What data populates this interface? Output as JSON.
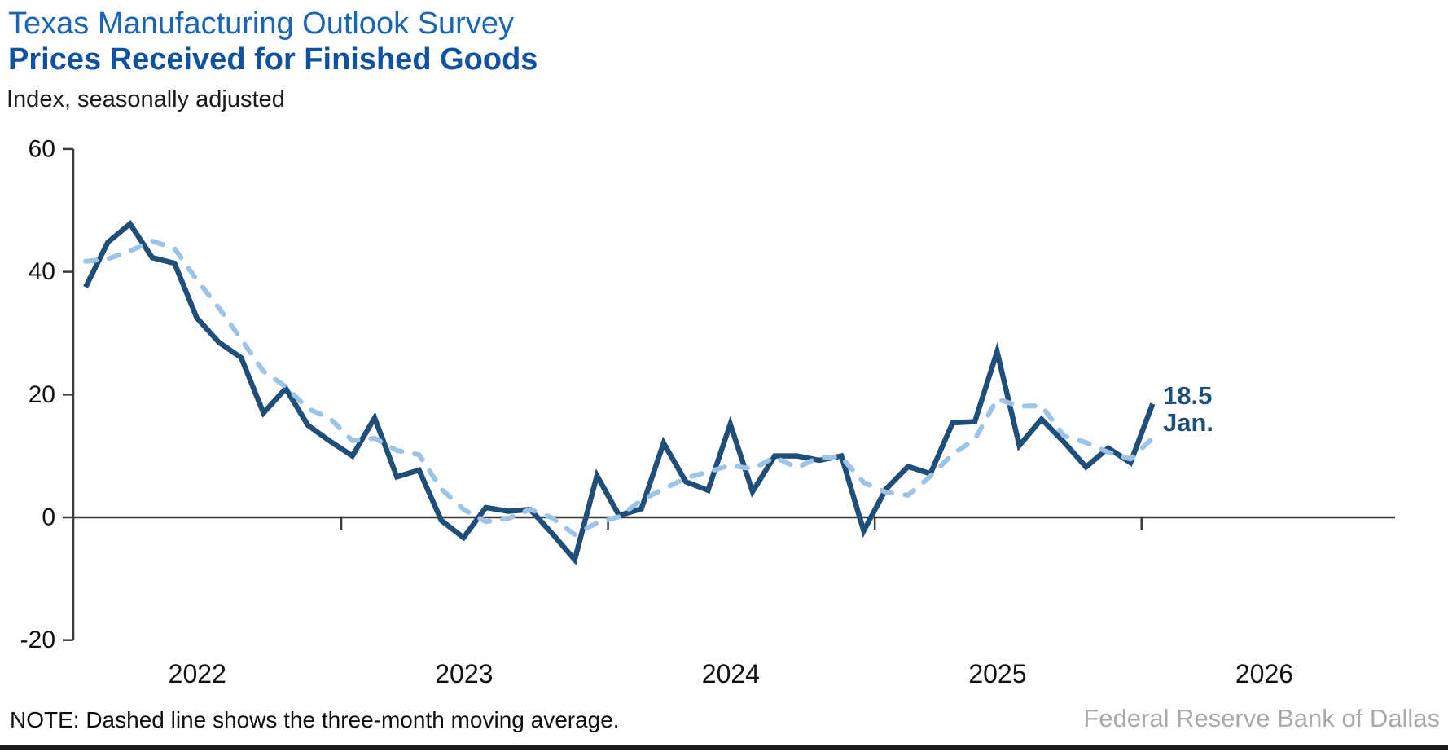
{
  "header": {
    "title": "Texas Manufacturing Outlook Survey",
    "subtitle": "Prices Received for Finished Goods",
    "units": "Index, seasonally adjusted"
  },
  "footer": {
    "note": "NOTE: Dashed line shows the three-month moving average.",
    "source": "Federal Reserve Bank of Dallas"
  },
  "colors": {
    "title": "#1a66b2",
    "subtitle": "#1152a0",
    "solid_line": "#1f4e79",
    "dashed_line": "#9dc3e6",
    "axis": "#3a3a3a",
    "annotation": "#1f4e79",
    "source_text": "#a9a9a9"
  },
  "chart_data": {
    "type": "line",
    "title": "Texas Manufacturing Outlook Survey - Prices Received for Finished Goods",
    "ylabel": "Index, seasonally adjusted",
    "ylim": [
      -20,
      60
    ],
    "yticks": [
      60,
      40,
      20,
      0,
      -20
    ],
    "grid": false,
    "legend": "none (dashed line explained in footnote)",
    "x_start_month": "2022-01",
    "x_end_month": "2026-01",
    "x_year_labels": [
      "2022",
      "2023",
      "2024",
      "2025",
      "2026"
    ],
    "series": [
      {
        "name": "Prices received for finished goods (monthly index)",
        "style": "solid",
        "color": "#1f4e79",
        "values": [
          37.5,
          44.8,
          47.8,
          42.3,
          41.4,
          32.5,
          28.5,
          26.0,
          17.0,
          21.0,
          15.0,
          12.4,
          10.0,
          16.2,
          6.6,
          7.7,
          -0.5,
          -3.3,
          1.6,
          1.0,
          1.3,
          -2.7,
          -6.9,
          6.8,
          0.3,
          1.4,
          12.1,
          5.8,
          4.4,
          15.2,
          4.2,
          10.0,
          10.0,
          9.3,
          10.0,
          -2.2,
          4.6,
          8.3,
          7.1,
          15.4,
          15.6,
          27.0,
          11.7,
          16.0,
          12.3,
          8.2,
          11.3,
          8.9,
          18.5
        ]
      },
      {
        "name": "Three-month moving average",
        "style": "dashed",
        "color": "#9dc3e6",
        "values": [
          41.7,
          42.1,
          43.4,
          45.0,
          43.8,
          38.7,
          34.1,
          29.0,
          23.8,
          21.3,
          17.7,
          16.1,
          12.5,
          12.9,
          10.9,
          10.2,
          4.6,
          1.3,
          -0.7,
          -0.2,
          1.3,
          -0.1,
          -2.8,
          -0.9,
          0.1,
          2.8,
          4.6,
          6.4,
          7.4,
          8.5,
          7.9,
          9.8,
          8.1,
          9.8,
          9.8,
          5.7,
          4.1,
          3.6,
          6.7,
          10.3,
          12.7,
          19.3,
          18.1,
          18.2,
          13.3,
          12.2,
          10.6,
          9.5,
          12.9
        ]
      }
    ],
    "annotation": {
      "value_label": "18.5",
      "month_label": "Jan.",
      "applies_to": "last point, January 2026"
    }
  }
}
